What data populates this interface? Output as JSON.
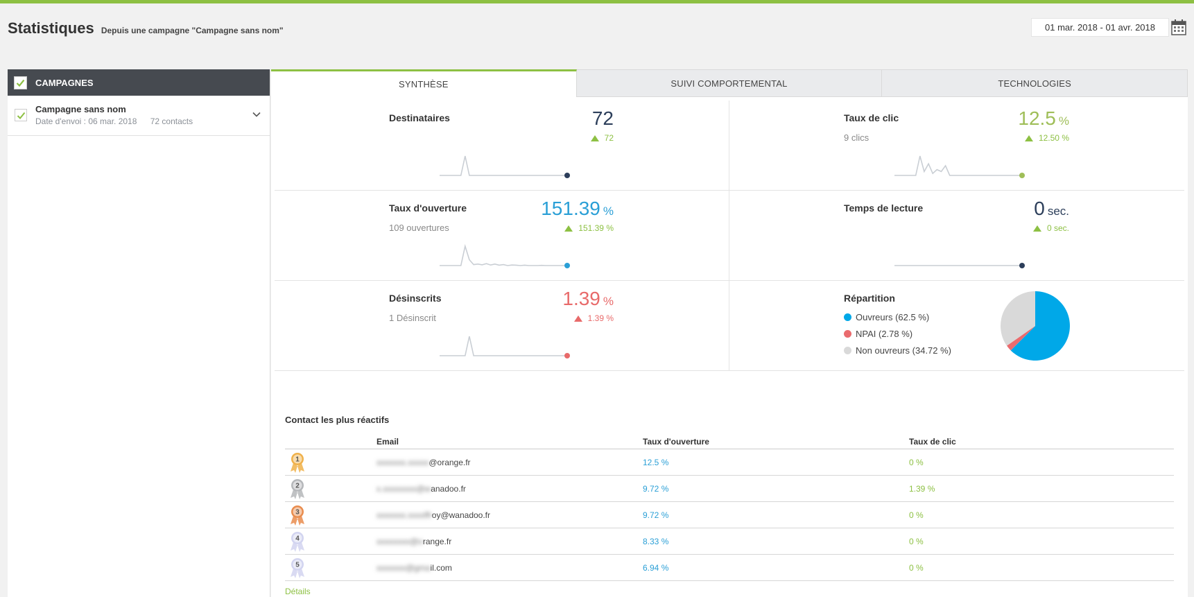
{
  "header": {
    "title": "Statistiques",
    "subtitle": "Depuis une campagne \"Campagne sans nom\"",
    "date_range": "01 mar. 2018 - 01 avr. 2018",
    "calendar_icon": "calendar-icon"
  },
  "sidebar": {
    "header_label": "CAMPAGNES",
    "items": [
      {
        "name": "Campagne sans nom",
        "sent_date": "Date d'envoi : 06 mar. 2018",
        "contacts": "72 contacts"
      }
    ]
  },
  "tabs": [
    {
      "label": "SYNTHÈSE",
      "active": true
    },
    {
      "label": "SUIVI COMPORTEMENTAL",
      "active": false
    },
    {
      "label": "TECHNOLOGIES",
      "active": false
    }
  ],
  "metrics": {
    "destinataires": {
      "label": "Destinataires",
      "sub": "",
      "value": "72",
      "unit": "",
      "delta": "72",
      "color": "#2c3e5a",
      "delta_color": "#8dc043",
      "spark": [
        0,
        0,
        0,
        0,
        0,
        0,
        1,
        0,
        0,
        0,
        0,
        0,
        0,
        0,
        0,
        0,
        0,
        0,
        0,
        0,
        0,
        0,
        0,
        0,
        0,
        0,
        0,
        0,
        0,
        0,
        0
      ]
    },
    "taux_clic": {
      "label": "Taux de clic",
      "sub": "9 clics",
      "value": "12.5",
      "unit": "%",
      "delta": "12.50 %",
      "color": "#9fbe58",
      "delta_color": "#8dc043",
      "spark": [
        0,
        0,
        0,
        0,
        0,
        0,
        1,
        0.2,
        0.6,
        0.1,
        0.3,
        0.2,
        0.5,
        0,
        0,
        0,
        0,
        0,
        0,
        0,
        0,
        0,
        0,
        0,
        0,
        0,
        0,
        0,
        0,
        0,
        0
      ]
    },
    "taux_ouverture": {
      "label": "Taux d'ouverture",
      "sub": "109 ouvertures",
      "value": "151.39",
      "unit": "%",
      "delta": "151.39 %",
      "color": "#2a9fd6",
      "delta_color": "#8dc043",
      "spark": [
        0,
        0,
        0,
        0,
        0,
        0,
        1,
        0.3,
        0.05,
        0.08,
        0.04,
        0.1,
        0.03,
        0.08,
        0.02,
        0.05,
        0,
        0.03,
        0.02,
        0,
        0.02,
        0,
        0,
        0,
        0.01,
        0,
        0,
        0,
        0,
        0,
        0
      ]
    },
    "temps_lecture": {
      "label": "Temps de lecture",
      "sub": "",
      "value": "0",
      "unit": "sec.",
      "delta": "0 sec.",
      "color": "#2c3e5a",
      "delta_color": "#8dc043",
      "spark": [
        0,
        0,
        0,
        0,
        0,
        0,
        0,
        0,
        0,
        0,
        0,
        0,
        0,
        0,
        0,
        0,
        0,
        0,
        0,
        0,
        0,
        0,
        0,
        0,
        0,
        0,
        0,
        0,
        0,
        0,
        0
      ]
    },
    "desinscrits": {
      "label": "Désinscrits",
      "sub": "1 Désinscrit",
      "value": "1.39",
      "unit": "%",
      "delta": "1.39 %",
      "color": "#e86a6a",
      "delta_color": "#e86a6a",
      "spark": [
        0,
        0,
        0,
        0,
        0,
        0,
        0,
        1,
        0,
        0,
        0,
        0,
        0,
        0,
        0,
        0,
        0,
        0,
        0,
        0,
        0,
        0,
        0,
        0,
        0,
        0,
        0,
        0,
        0,
        0,
        0
      ]
    }
  },
  "repartition": {
    "label": "Répartition",
    "items": [
      {
        "label": "Ouvreurs (62.5 %)",
        "value": 62.5,
        "color": "#00a8e8"
      },
      {
        "label": "NPAI (2.78 %)",
        "value": 2.78,
        "color": "#ea6b6e"
      },
      {
        "label": "Non ouvreurs (34.72 %)",
        "value": 34.72,
        "color": "#d9d9d9"
      }
    ]
  },
  "contacts": {
    "title": "Contact les plus réactifs",
    "columns": [
      "Email",
      "Taux d'ouverture",
      "Taux de clic"
    ],
    "rows": [
      {
        "rank": "1",
        "email_hidden": "xxxxxxx.xxxxx",
        "email_visible": "@orange.fr",
        "open": "12.5 %",
        "click": "0 %",
        "medal": "#f0b14a"
      },
      {
        "rank": "2",
        "email_hidden": "x.xxxxxxxx@w",
        "email_visible": "anadoo.fr",
        "open": "9.72 %",
        "click": "1.39 %",
        "medal": "#b5b7ba"
      },
      {
        "rank": "3",
        "email_hidden": "xxxxxxx.xxxxffr",
        "email_visible": "oy@wanadoo.fr",
        "open": "9.72 %",
        "click": "0 %",
        "medal": "#e98c4d"
      },
      {
        "rank": "4",
        "email_hidden": "xxxxxxxx@o",
        "email_visible": "range.fr",
        "open": "8.33 %",
        "click": "0 %",
        "medal": "#d2d4f0"
      },
      {
        "rank": "5",
        "email_hidden": "xxxxxxx@gma",
        "email_visible": "il.com",
        "open": "6.94 %",
        "click": "0 %",
        "medal": "#d2d4f0"
      }
    ],
    "details_link": "Détails"
  }
}
